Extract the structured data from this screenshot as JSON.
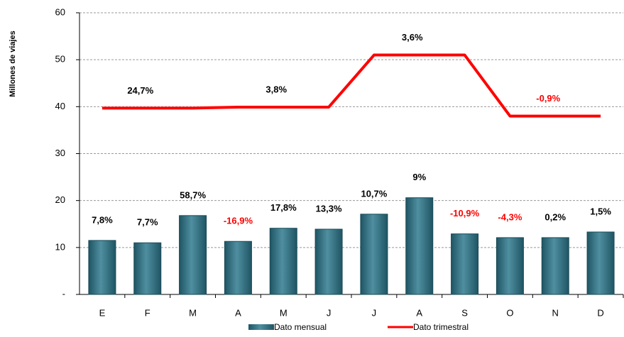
{
  "chart_data": {
    "type": "bar-line",
    "y_label": "Millones de viajes",
    "categories": [
      "E",
      "F",
      "M",
      "A",
      "M",
      "J",
      "J",
      "A",
      "S",
      "O",
      "N",
      "D"
    ],
    "ylim": [
      0,
      60
    ],
    "yticks": [
      {
        "value": 0,
        "label": "-"
      },
      10,
      20,
      30,
      40,
      50,
      60
    ],
    "grid": true,
    "series": [
      {
        "name": "Dato mensual",
        "type": "bar",
        "color": "#2f6f80",
        "values": [
          11.5,
          11,
          16.8,
          11.3,
          14.1,
          13.9,
          17.1,
          20.6,
          12.9,
          12.1,
          12.1,
          13.3
        ],
        "labels": [
          "7,8%",
          "7,7%",
          "58,7%",
          "-16,9%",
          "17,8%",
          "13,3%",
          "10,7%",
          "9%",
          "-10,9%",
          "-4,3%",
          "0,2%",
          "1,5%"
        ],
        "label_colors": [
          "#000000",
          "#000000",
          "#000000",
          "#ff0000",
          "#000000",
          "#000000",
          "#000000",
          "#000000",
          "#ff0000",
          "#ff0000",
          "#000000",
          "#000000"
        ]
      },
      {
        "name": "Dato trimestral",
        "type": "line",
        "color": "#ff0000",
        "values": [
          39.7,
          39.7,
          39.7,
          39.9,
          39.9,
          39.9,
          51,
          51,
          51,
          38,
          38,
          38
        ],
        "labels": [
          null,
          "24,7%",
          null,
          null,
          "3,8%",
          null,
          null,
          "3,6%",
          null,
          null,
          "-0,9%",
          null
        ],
        "label_colors": [
          null,
          "#000000",
          null,
          null,
          "#000000",
          null,
          null,
          "#000000",
          null,
          null,
          "#ff0000",
          null
        ]
      }
    ],
    "legend": "bottom"
  }
}
